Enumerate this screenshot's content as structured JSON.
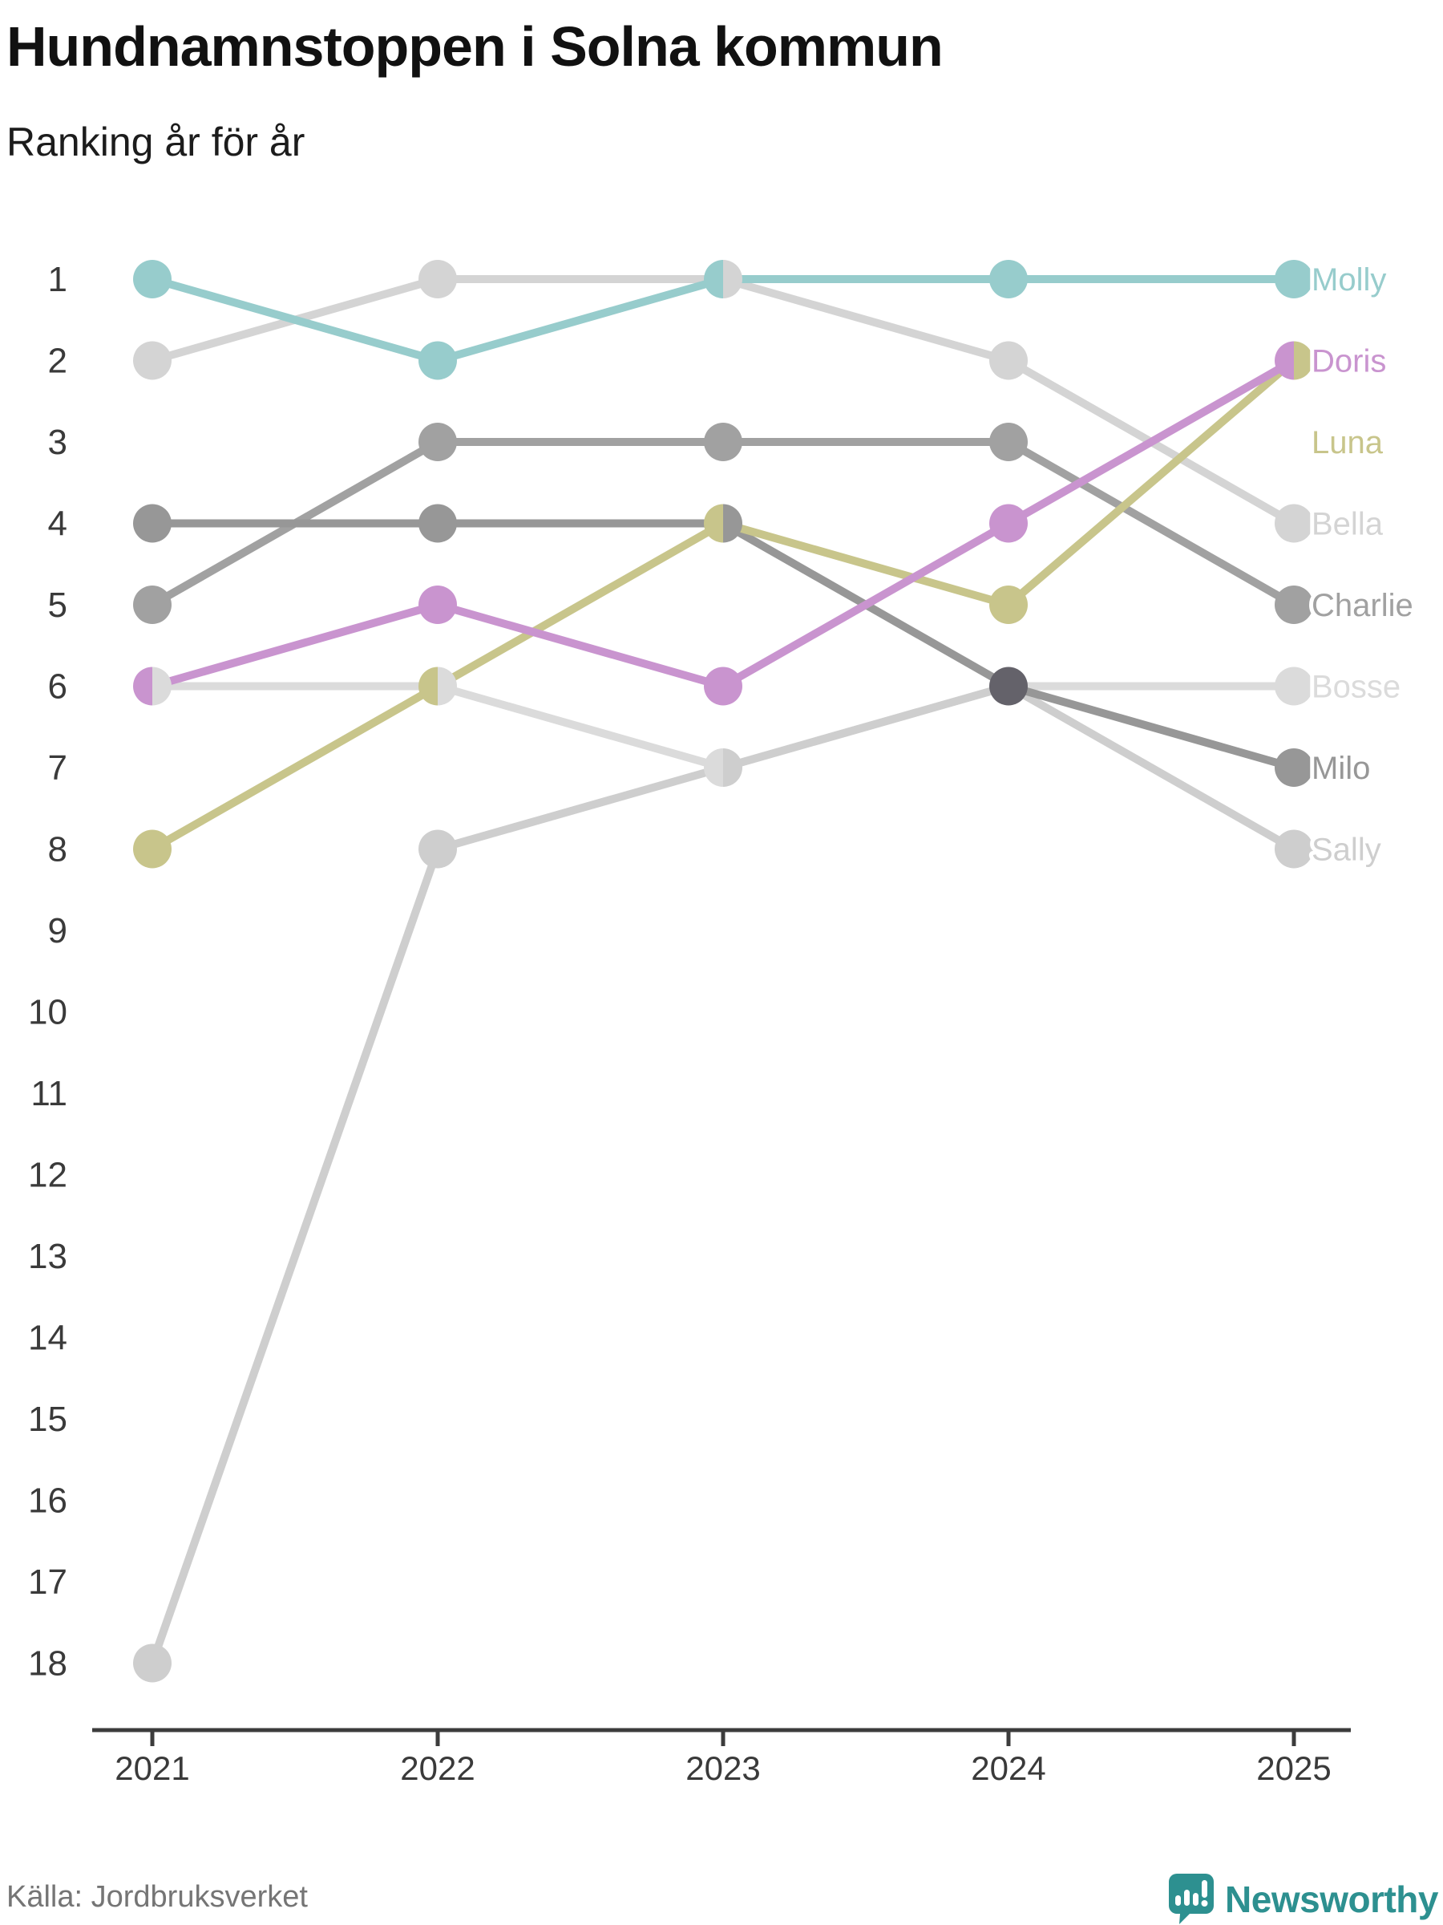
{
  "header": {
    "title": "Hundnamnstoppen i Solna kommun",
    "subtitle": "Ranking år för år"
  },
  "footer": {
    "source": "Källa: Jordbruksverket",
    "logo_text": "Newsworthy"
  },
  "colors": {
    "axis": "#3c3c3c",
    "tick_label": "#3a3a3a",
    "rank_label": "#3a3a3a",
    "source_text": "#757575",
    "logo_teal": "#2d9090",
    "overlap3": "#64626a",
    "label_halo": "#ffffff"
  },
  "chart_data": {
    "type": "line",
    "subtype": "bump-ranking",
    "title": "Hundnamnstoppen i Solna kommun",
    "xlabel": "",
    "ylabel": "Ranking",
    "x": [
      "2021",
      "2022",
      "2023",
      "2024",
      "2025"
    ],
    "rank_range": [
      1,
      18
    ],
    "y_inverted": true,
    "grid": false,
    "legend_position": "right-of-last-point",
    "series": [
      {
        "name": "Bosse",
        "color": "#dbdbdb",
        "label_rank": 6,
        "ranks": [
          6,
          6,
          7,
          6,
          6
        ]
      },
      {
        "name": "Bella",
        "color": "#d4d4d4",
        "label_rank": 4,
        "ranks": [
          2,
          1,
          1,
          2,
          4
        ]
      },
      {
        "name": "Sally",
        "color": "#cecece",
        "label_rank": 8,
        "ranks": [
          18,
          8,
          7,
          6,
          8
        ]
      },
      {
        "name": "Charlie",
        "color": "#a1a1a1",
        "label_rank": 5,
        "ranks": [
          5,
          3,
          3,
          3,
          5
        ]
      },
      {
        "name": "Milo",
        "color": "#979797",
        "label_rank": 7,
        "ranks": [
          4,
          4,
          4,
          6,
          7
        ]
      },
      {
        "name": "Luna",
        "color": "#c8c58b",
        "label_rank": 3,
        "ranks": [
          8,
          6,
          4,
          5,
          2
        ]
      },
      {
        "name": "Doris",
        "color": "#c994cf",
        "label_rank": 2,
        "ranks": [
          6,
          5,
          6,
          4,
          2
        ]
      },
      {
        "name": "Molly",
        "color": "#97cccc",
        "label_rank": 1,
        "ranks": [
          1,
          2,
          1,
          1,
          1
        ]
      }
    ]
  }
}
